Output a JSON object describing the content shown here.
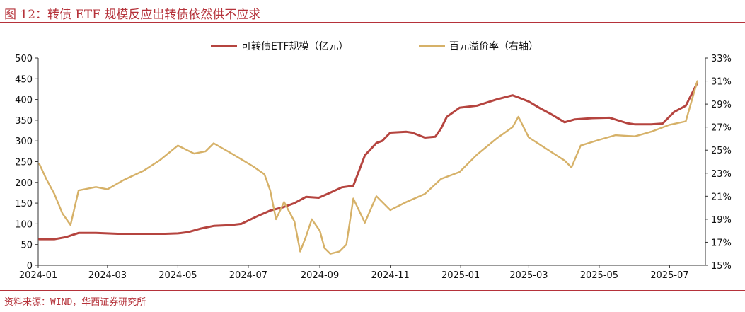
{
  "header": {
    "title": "图 12：转债 ETF 规模反应出转债依然供不应求"
  },
  "footer": {
    "source": "资料来源：WIND，华西证券研究所"
  },
  "chart_data": {
    "type": "line",
    "title": "",
    "xlabel": "",
    "ylabel": "",
    "legend_position": "top-center",
    "grid": false,
    "x_ticks": [
      "2024-01",
      "2024-03",
      "2024-05",
      "2024-07",
      "2024-09",
      "2024-11",
      "2025-01",
      "2025-03",
      "2025-05",
      "2025-07"
    ],
    "y_left": {
      "range": [
        0,
        500
      ],
      "ticks": [
        "0",
        "50",
        "100",
        "150",
        "200",
        "250",
        "300",
        "350",
        "400",
        "450",
        "500"
      ]
    },
    "y_right": {
      "range": [
        15,
        33
      ],
      "ticks": [
        "15%",
        "17%",
        "19%",
        "21%",
        "23%",
        "25%",
        "27%",
        "29%",
        "31%",
        "33%"
      ]
    },
    "series": [
      {
        "name": "可转债ETF规模（亿元）",
        "axis": "left",
        "color": "#b5443f",
        "x": [
          "2024-01-02",
          "2024-01-15",
          "2024-01-25",
          "2024-02-05",
          "2024-02-20",
          "2024-03-10",
          "2024-04-01",
          "2024-04-20",
          "2024-05-01",
          "2024-05-10",
          "2024-05-20",
          "2024-06-01",
          "2024-06-15",
          "2024-06-25",
          "2024-07-01",
          "2024-07-10",
          "2024-07-20",
          "2024-07-31",
          "2024-08-10",
          "2024-08-20",
          "2024-08-31",
          "2024-09-10",
          "2024-09-20",
          "2024-09-25",
          "2024-09-30",
          "2024-10-10",
          "2024-10-20",
          "2024-10-25",
          "2024-11-01",
          "2024-11-15",
          "2024-11-20",
          "2024-12-01",
          "2024-12-10",
          "2024-12-15",
          "2024-12-20",
          "2024-12-31",
          "2025-01-15",
          "2025-02-01",
          "2025-02-15",
          "2025-02-20",
          "2025-03-01",
          "2025-03-10",
          "2025-03-20",
          "2025-04-01",
          "2025-04-10",
          "2025-04-25",
          "2025-05-10",
          "2025-05-25",
          "2025-06-01",
          "2025-06-15",
          "2025-06-25",
          "2025-07-05",
          "2025-07-15",
          "2025-07-25"
        ],
        "values": [
          63,
          63,
          68,
          78,
          78,
          76,
          76,
          76,
          77,
          80,
          88,
          95,
          97,
          100,
          108,
          120,
          132,
          140,
          150,
          165,
          163,
          175,
          188,
          190,
          192,
          265,
          295,
          300,
          320,
          322,
          320,
          308,
          310,
          330,
          358,
          380,
          385,
          400,
          410,
          405,
          395,
          380,
          365,
          345,
          352,
          355,
          356,
          343,
          340,
          340,
          342,
          370,
          385,
          440
        ]
      },
      {
        "name": "百元溢价率（右轴）",
        "axis": "right",
        "color": "#d6b168",
        "x": [
          "2024-01-02",
          "2024-01-08",
          "2024-01-15",
          "2024-01-22",
          "2024-01-29",
          "2024-02-05",
          "2024-02-20",
          "2024-03-01",
          "2024-03-15",
          "2024-04-01",
          "2024-04-15",
          "2024-05-01",
          "2024-05-15",
          "2024-05-25",
          "2024-06-01",
          "2024-06-15",
          "2024-06-25",
          "2024-07-05",
          "2024-07-15",
          "2024-07-20",
          "2024-07-25",
          "2024-08-01",
          "2024-08-10",
          "2024-08-15",
          "2024-08-20",
          "2024-08-25",
          "2024-09-01",
          "2024-09-05",
          "2024-09-10",
          "2024-09-18",
          "2024-09-24",
          "2024-09-30",
          "2024-10-10",
          "2024-10-20",
          "2024-11-01",
          "2024-11-15",
          "2024-12-01",
          "2024-12-15",
          "2024-12-31",
          "2025-01-15",
          "2025-02-01",
          "2025-02-15",
          "2025-02-20",
          "2025-03-01",
          "2025-03-15",
          "2025-04-01",
          "2025-04-07",
          "2025-04-15",
          "2025-05-01",
          "2025-05-15",
          "2025-06-01",
          "2025-06-15",
          "2025-07-01",
          "2025-07-15",
          "2025-07-25"
        ],
        "values": [
          23.8,
          22.5,
          21.2,
          19.5,
          18.5,
          21.5,
          21.8,
          21.6,
          22.4,
          23.2,
          24.1,
          25.4,
          24.7,
          24.9,
          25.6,
          24.8,
          24.2,
          23.6,
          22.9,
          21.5,
          19.0,
          20.5,
          18.8,
          16.2,
          17.5,
          19.0,
          18.0,
          16.5,
          16.0,
          16.2,
          16.8,
          20.8,
          18.7,
          21.0,
          19.8,
          20.5,
          21.2,
          22.5,
          23.1,
          24.6,
          26.0,
          27.0,
          27.9,
          26.1,
          25.2,
          24.1,
          23.5,
          25.4,
          25.9,
          26.3,
          26.2,
          26.6,
          27.2,
          27.5,
          31.0
        ]
      }
    ]
  }
}
